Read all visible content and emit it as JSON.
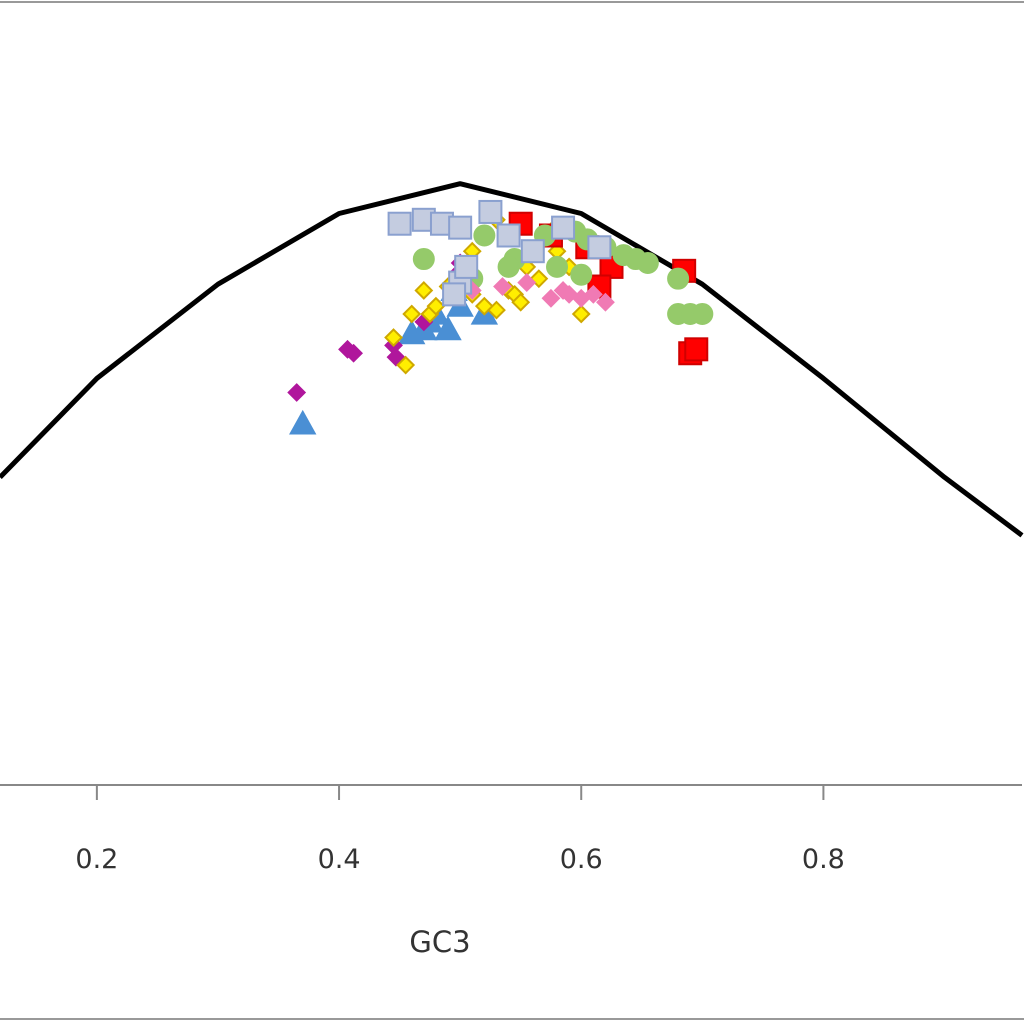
{
  "chart_data": {
    "type": "scatter",
    "title": "",
    "xlabel": "GC3",
    "ylabel": "",
    "xlim": [
      0.12,
      0.964
    ],
    "ylim": [
      0.0,
      1.0
    ],
    "x_ticks": [
      {
        "value": 0.2,
        "label": "0.2"
      },
      {
        "value": 0.4,
        "label": "0.4"
      },
      {
        "value": 0.6,
        "label": "0.6"
      },
      {
        "value": 0.8,
        "label": "0.8"
      }
    ],
    "grid": false,
    "legend": "none",
    "expected_curve": {
      "color": "#000000",
      "x": [
        0.12,
        0.2,
        0.3,
        0.4,
        0.5,
        0.6,
        0.7,
        0.8,
        0.9,
        0.964
      ],
      "y": [
        0.392,
        0.518,
        0.638,
        0.728,
        0.766,
        0.728,
        0.638,
        0.518,
        0.392,
        0.318
      ]
    },
    "series": [
      {
        "marker": "triangle",
        "fill": "#4a8fd4",
        "stroke": "#4a8fd4",
        "size": 12,
        "points": [
          [
            0.37,
            0.46
          ],
          [
            0.47,
            0.58
          ],
          [
            0.48,
            0.6
          ],
          [
            0.49,
            0.58
          ],
          [
            0.5,
            0.61
          ],
          [
            0.52,
            0.6
          ],
          [
            0.46,
            0.575
          ],
          [
            0.495,
            0.63
          ],
          [
            0.475,
            0.59
          ]
        ]
      },
      {
        "marker": "diamond",
        "fill": "#b0169c",
        "stroke": "#b0169c",
        "size": 8,
        "points": [
          [
            0.365,
            0.5
          ],
          [
            0.407,
            0.555
          ],
          [
            0.412,
            0.55
          ],
          [
            0.445,
            0.56
          ],
          [
            0.447,
            0.545
          ],
          [
            0.47,
            0.59
          ],
          [
            0.5,
            0.655
          ],
          [
            0.5,
            0.665
          ]
        ]
      },
      {
        "marker": "diamond",
        "fill": "#ffee00",
        "stroke": "#cfa800",
        "size": 8,
        "points": [
          [
            0.445,
            0.57
          ],
          [
            0.455,
            0.535
          ],
          [
            0.475,
            0.6
          ],
          [
            0.48,
            0.61
          ],
          [
            0.49,
            0.635
          ],
          [
            0.5,
            0.64
          ],
          [
            0.51,
            0.625
          ],
          [
            0.52,
            0.61
          ],
          [
            0.53,
            0.605
          ],
          [
            0.53,
            0.72
          ],
          [
            0.54,
            0.63
          ],
          [
            0.545,
            0.625
          ],
          [
            0.55,
            0.615
          ],
          [
            0.555,
            0.66
          ],
          [
            0.565,
            0.645
          ],
          [
            0.575,
            0.705
          ],
          [
            0.58,
            0.68
          ],
          [
            0.59,
            0.66
          ],
          [
            0.6,
            0.6
          ],
          [
            0.46,
            0.6
          ],
          [
            0.47,
            0.63
          ],
          [
            0.51,
            0.68
          ]
        ]
      },
      {
        "marker": "square",
        "fill": "#ff0000",
        "stroke": "#d00000",
        "size": 11,
        "points": [
          [
            0.575,
            0.7
          ],
          [
            0.605,
            0.685
          ],
          [
            0.625,
            0.66
          ],
          [
            0.685,
            0.655
          ],
          [
            0.69,
            0.55
          ],
          [
            0.695,
            0.555
          ],
          [
            0.55,
            0.715
          ],
          [
            0.615,
            0.635
          ]
        ]
      },
      {
        "marker": "circle",
        "fill": "#95ca6a",
        "stroke": "#95ca6a",
        "size": 10,
        "points": [
          [
            0.52,
            0.7
          ],
          [
            0.545,
            0.67
          ],
          [
            0.57,
            0.7
          ],
          [
            0.595,
            0.705
          ],
          [
            0.605,
            0.695
          ],
          [
            0.62,
            0.685
          ],
          [
            0.635,
            0.675
          ],
          [
            0.645,
            0.67
          ],
          [
            0.655,
            0.665
          ],
          [
            0.68,
            0.645
          ],
          [
            0.68,
            0.6
          ],
          [
            0.69,
            0.6
          ],
          [
            0.7,
            0.6
          ],
          [
            0.58,
            0.66
          ],
          [
            0.6,
            0.65
          ],
          [
            0.47,
            0.67
          ],
          [
            0.51,
            0.645
          ],
          [
            0.54,
            0.66
          ]
        ]
      },
      {
        "marker": "diamond",
        "fill": "#f07ab4",
        "stroke": "#f07ab4",
        "size": 8,
        "points": [
          [
            0.535,
            0.635
          ],
          [
            0.575,
            0.62
          ],
          [
            0.585,
            0.63
          ],
          [
            0.59,
            0.625
          ],
          [
            0.6,
            0.62
          ],
          [
            0.61,
            0.625
          ],
          [
            0.62,
            0.615
          ],
          [
            0.555,
            0.64
          ],
          [
            0.51,
            0.63
          ]
        ]
      },
      {
        "marker": "square",
        "fill": "#c4cce0",
        "stroke": "#8aa0cf",
        "size": 11,
        "points": [
          [
            0.45,
            0.715
          ],
          [
            0.47,
            0.72
          ],
          [
            0.485,
            0.715
          ],
          [
            0.5,
            0.71
          ],
          [
            0.525,
            0.73
          ],
          [
            0.54,
            0.7
          ],
          [
            0.56,
            0.68
          ],
          [
            0.585,
            0.71
          ],
          [
            0.615,
            0.685
          ],
          [
            0.5,
            0.64
          ],
          [
            0.495,
            0.625
          ],
          [
            0.505,
            0.66
          ]
        ]
      }
    ]
  }
}
